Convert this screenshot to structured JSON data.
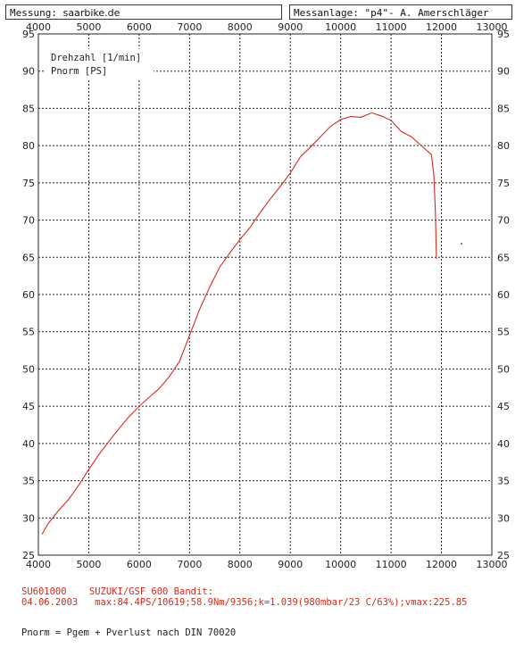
{
  "header": {
    "left_label": "Messung:",
    "left_value": "saarbike.de",
    "right_label": "Messanlage:",
    "right_value": "\"p4\"- A. Amerschläger"
  },
  "legend": {
    "line1": "Drehzahl [1/min]",
    "line2": "Pnorm [PS]"
  },
  "footer": {
    "code": "SU601000",
    "model": "SUZUKI/GSF  600 Bandit:",
    "date": "04.06.2003",
    "specs": "max:84.4PS/10619;58.9Nm/9356;k=1.039(980mbar/23 C/63%);vmax:225.85",
    "note": "Pnorm = Pgem + Pverlust nach DIN 70020"
  },
  "colors": {
    "curve": "#d62a1a",
    "grid": "#222222"
  },
  "chart_data": {
    "type": "line",
    "xlim": [
      4000,
      13000
    ],
    "ylim": [
      25,
      95
    ],
    "x_ticks": [
      4000,
      5000,
      6000,
      7000,
      8000,
      9000,
      10000,
      11000,
      12000,
      13000
    ],
    "x_tick_labels": [
      "4000",
      "5000",
      "6000",
      "7000",
      "8000",
      "9000",
      "10000",
      "11000",
      "12000",
      "13000"
    ],
    "y_ticks": [
      25,
      30,
      35,
      40,
      45,
      50,
      55,
      60,
      65,
      70,
      75,
      80,
      85,
      90,
      95
    ],
    "y_tick_labels": [
      "25",
      "30",
      "35",
      "40",
      "45",
      "50",
      "55",
      "60",
      "65",
      "70",
      "75",
      "80",
      "85",
      "90",
      "95"
    ],
    "grid": true,
    "series": [
      {
        "x": [
          4070,
          4200,
          4400,
          4600,
          4800,
          5000,
          5200,
          5400,
          5600,
          5800,
          6000,
          6200,
          6400,
          6600,
          6800,
          7000,
          7200,
          7400,
          7600,
          7800,
          8000,
          8200,
          8400,
          8600,
          8800,
          9000,
          9200,
          9400,
          9600,
          9800,
          10000,
          10200,
          10400,
          10619,
          10800,
          11000,
          11200,
          11400,
          11600,
          11800,
          11850,
          11880,
          11900
        ],
        "y": [
          27.8,
          29.3,
          31,
          32.5,
          34.4,
          36.5,
          38.5,
          40.3,
          42,
          43.6,
          45,
          46.2,
          47.4,
          49,
          51,
          54.5,
          58,
          61,
          63.7,
          65.6,
          67.4,
          69,
          71,
          72.8,
          74.5,
          76.3,
          78.5,
          79.8,
          81.2,
          82.6,
          83.5,
          83.9,
          83.8,
          84.4,
          84,
          83.4,
          81.9,
          81.2,
          80,
          78.8,
          76,
          71,
          64.8
        ]
      }
    ]
  }
}
